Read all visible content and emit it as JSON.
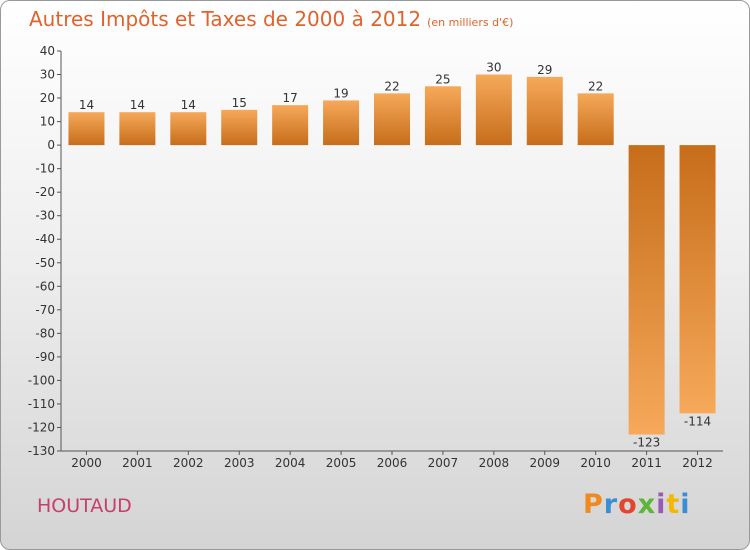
{
  "header": {
    "title": "Autres Impôts et Taxes de 2000 à 2012",
    "unit": "(en milliers d'€)"
  },
  "footer": {
    "commune": "HOUTAUD",
    "logo": [
      "P",
      "r",
      "o",
      "x",
      "i",
      "t",
      "i"
    ]
  },
  "colors": {
    "bar_light": "#f6a95a",
    "bar_dark": "#c66d1a",
    "title": "#e0622c",
    "commune": "#c83e6b"
  },
  "chart_data": {
    "type": "bar",
    "title": "Autres Impôts et Taxes de 2000 à 2012",
    "subtitle": "(en milliers d'€)",
    "categories": [
      "2000",
      "2001",
      "2002",
      "2003",
      "2004",
      "2005",
      "2006",
      "2007",
      "2008",
      "2009",
      "2010",
      "2011",
      "2012"
    ],
    "values": [
      14,
      14,
      14,
      15,
      17,
      19,
      22,
      25,
      30,
      29,
      22,
      -123,
      -114
    ],
    "value_labels": [
      "14",
      "14",
      "14",
      "15",
      "17",
      "19",
      "22",
      "25",
      "30",
      "29",
      "22",
      "-123",
      "-114"
    ],
    "ylim": [
      -130,
      40
    ],
    "yticks": [
      40,
      30,
      20,
      10,
      0,
      -10,
      -20,
      -30,
      -40,
      -50,
      -60,
      -70,
      -80,
      -90,
      -100,
      -110,
      -120,
      -130
    ],
    "grid": false,
    "xlabel": "",
    "ylabel": ""
  }
}
